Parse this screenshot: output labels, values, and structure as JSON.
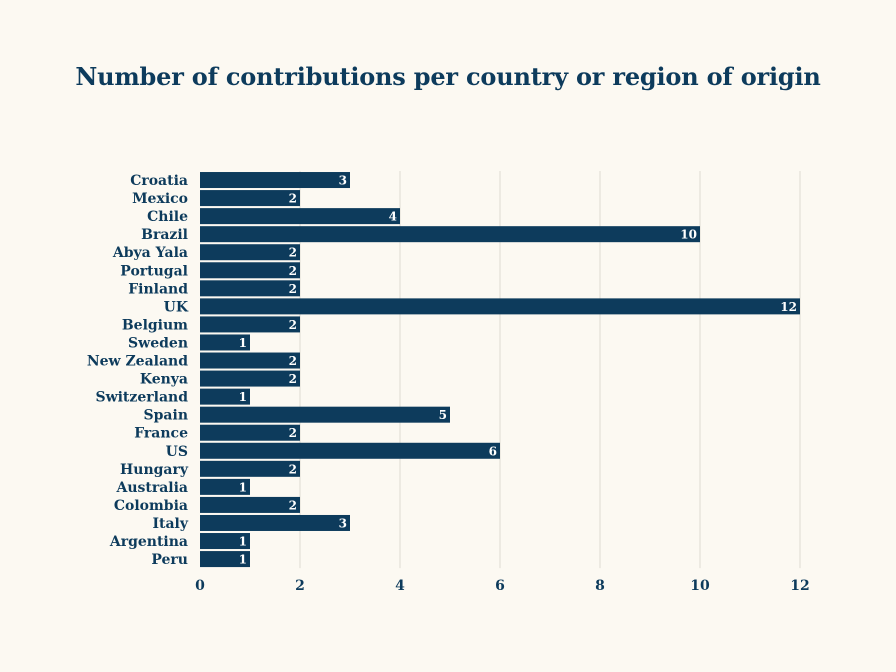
{
  "chart_data": {
    "type": "bar",
    "orientation": "horizontal",
    "title": "Number of contributions per country or region of origin",
    "xlabel": "",
    "ylabel": "",
    "categories": [
      "Croatia",
      "Mexico",
      "Chile",
      "Brazil",
      "Abya Yala",
      "Portugal",
      "Finland",
      "UK",
      "Belgium",
      "Sweden",
      "New Zealand",
      "Kenya",
      "Switzerland",
      "Spain",
      "France",
      "US",
      "Hungary",
      "Australia",
      "Colombia",
      "Italy",
      "Argentina",
      "Peru"
    ],
    "values": [
      3,
      2,
      4,
      10,
      2,
      2,
      2,
      12,
      2,
      1,
      2,
      2,
      1,
      5,
      2,
      6,
      2,
      1,
      2,
      3,
      1,
      1
    ],
    "xlim": [
      0,
      12
    ],
    "xticks": [
      0,
      2,
      4,
      6,
      8,
      10,
      12
    ],
    "grid": "vertical",
    "data_labels": true,
    "legend": "none"
  },
  "colors": {
    "bar": "#0d3b5c",
    "background": "#fcf9f2",
    "grid": "#dedbd3",
    "text": "#0d3b5c",
    "value_text": "#ffffff"
  }
}
